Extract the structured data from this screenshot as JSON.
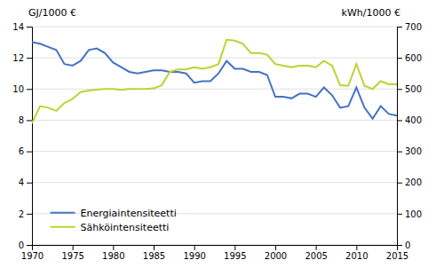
{
  "chart_data": {
    "type": "line",
    "x": [
      1970,
      1971,
      1972,
      1973,
      1974,
      1975,
      1976,
      1977,
      1978,
      1979,
      1980,
      1981,
      1982,
      1983,
      1984,
      1985,
      1986,
      1987,
      1988,
      1989,
      1990,
      1991,
      1992,
      1993,
      1994,
      1995,
      1996,
      1997,
      1998,
      1999,
      2000,
      2001,
      2002,
      2003,
      2004,
      2005,
      2006,
      2007,
      2008,
      2009,
      2010,
      2011,
      2012,
      2013,
      2014,
      2015
    ],
    "xlim": [
      1970,
      2015
    ],
    "xticks": [
      1970,
      1975,
      1980,
      1985,
      1990,
      1995,
      2000,
      2005,
      2010,
      2015
    ],
    "ylabel": "GJ/1000 €",
    "y2label": "kWh/1000 €",
    "ylim": [
      0,
      14
    ],
    "yticks": [
      0,
      2,
      4,
      6,
      8,
      10,
      12,
      14
    ],
    "y2lim": [
      0,
      700
    ],
    "y2ticks": [
      0,
      100,
      200,
      300,
      400,
      500,
      600,
      700
    ],
    "grid": true,
    "legend": "lower left",
    "series": [
      {
        "name": "Energiaintensiteetti",
        "color": "#4472c4",
        "values": [
          13.0,
          12.9,
          12.7,
          12.5,
          11.6,
          11.5,
          11.8,
          12.5,
          12.6,
          12.3,
          11.7,
          11.4,
          11.1,
          11.0,
          11.1,
          11.2,
          11.2,
          11.1,
          11.1,
          11.0,
          10.4,
          10.5,
          10.5,
          11.0,
          11.8,
          11.3,
          11.3,
          11.1,
          11.1,
          10.9,
          9.5,
          9.5,
          9.4,
          9.7,
          9.7,
          9.5,
          10.1,
          9.6,
          8.8,
          8.9,
          10.1,
          8.8,
          8.1,
          8.9,
          8.4,
          8.3
        ]
      },
      {
        "name": "Sähköintensiteetti",
        "color": "#bdd231",
        "axis": "y2",
        "values": [
          390,
          445,
          440,
          430,
          455,
          468,
          490,
          495,
          498,
          500,
          500,
          497,
          500,
          500,
          500,
          502,
          512,
          555,
          563,
          563,
          570,
          565,
          570,
          580,
          658,
          655,
          645,
          615,
          615,
          610,
          580,
          575,
          570,
          575,
          575,
          570,
          590,
          575,
          512,
          510,
          580,
          510,
          500,
          525,
          515,
          515
        ]
      }
    ]
  }
}
